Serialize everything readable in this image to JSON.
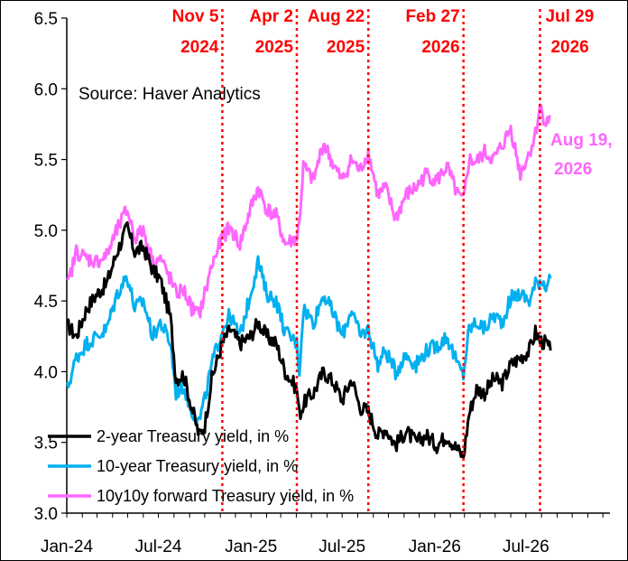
{
  "chart_data": {
    "type": "line",
    "ylim": [
      3.0,
      6.5
    ],
    "yticks": [
      "3.0",
      "3.5",
      "4.0",
      "4.5",
      "5.0",
      "5.5",
      "6.0",
      "6.5"
    ],
    "xtick_labels": [
      "Jan-24",
      "Jul-24",
      "Jan-25",
      "Jul-25",
      "Jan-26",
      "Jul-26"
    ],
    "source_note": "Source: Haver Analytics",
    "events": [
      {
        "date": "2024-11-05",
        "line1": "Nov 5",
        "line2": "2024"
      },
      {
        "date": "2025-04-02",
        "line1": "Apr 2",
        "line2": "2025"
      },
      {
        "date": "2025-08-22",
        "line1": "Aug 22",
        "line2": "2025"
      },
      {
        "date": "2026-02-27",
        "line1": "Feb 27",
        "line2": "2026"
      },
      {
        "date": "2026-07-29",
        "line1": "Jul 29",
        "line2": "2026"
      }
    ],
    "end_label": {
      "line1": "Aug 19,",
      "line2": "2026"
    },
    "series": [
      {
        "name": "2-year Treasury yield, in %",
        "color": "#000000",
        "points": [
          [
            "2024-01-02",
            4.33
          ],
          [
            "2024-01-20",
            4.25
          ],
          [
            "2024-02-10",
            4.45
          ],
          [
            "2024-03-01",
            4.55
          ],
          [
            "2024-03-20",
            4.62
          ],
          [
            "2024-04-10",
            4.85
          ],
          [
            "2024-04-30",
            5.02
          ],
          [
            "2024-05-15",
            4.85
          ],
          [
            "2024-06-01",
            4.88
          ],
          [
            "2024-06-20",
            4.72
          ],
          [
            "2024-07-05",
            4.65
          ],
          [
            "2024-07-25",
            4.38
          ],
          [
            "2024-08-05",
            3.95
          ],
          [
            "2024-08-20",
            3.98
          ],
          [
            "2024-09-05",
            3.75
          ],
          [
            "2024-09-20",
            3.55
          ],
          [
            "2024-10-01",
            3.62
          ],
          [
            "2024-10-15",
            3.95
          ],
          [
            "2024-11-05",
            4.2
          ],
          [
            "2024-11-20",
            4.3
          ],
          [
            "2024-12-10",
            4.2
          ],
          [
            "2024-12-31",
            4.25
          ],
          [
            "2025-01-15",
            4.35
          ],
          [
            "2025-02-01",
            4.25
          ],
          [
            "2025-02-20",
            4.2
          ],
          [
            "2025-03-10",
            4.0
          ],
          [
            "2025-04-02",
            3.88
          ],
          [
            "2025-04-07",
            3.7
          ],
          [
            "2025-04-20",
            3.8
          ],
          [
            "2025-05-05",
            3.85
          ],
          [
            "2025-05-25",
            4.0
          ],
          [
            "2025-06-15",
            3.92
          ],
          [
            "2025-07-01",
            3.8
          ],
          [
            "2025-07-20",
            3.95
          ],
          [
            "2025-08-05",
            3.75
          ],
          [
            "2025-08-22",
            3.72
          ],
          [
            "2025-09-10",
            3.55
          ],
          [
            "2025-09-25",
            3.6
          ],
          [
            "2025-10-15",
            3.48
          ],
          [
            "2025-11-05",
            3.58
          ],
          [
            "2025-11-25",
            3.5
          ],
          [
            "2025-12-15",
            3.55
          ],
          [
            "2026-01-05",
            3.48
          ],
          [
            "2026-01-25",
            3.55
          ],
          [
            "2026-02-15",
            3.45
          ],
          [
            "2026-02-27",
            3.4
          ],
          [
            "2026-03-10",
            3.7
          ],
          [
            "2026-03-25",
            3.88
          ],
          [
            "2026-04-10",
            3.85
          ],
          [
            "2026-04-28",
            3.95
          ],
          [
            "2026-05-15",
            3.92
          ],
          [
            "2026-06-01",
            4.05
          ],
          [
            "2026-06-20",
            4.1
          ],
          [
            "2026-07-08",
            4.15
          ],
          [
            "2026-07-20",
            4.28
          ],
          [
            "2026-07-29",
            4.22
          ],
          [
            "2026-08-10",
            4.2
          ],
          [
            "2026-08-19",
            4.15
          ]
        ]
      },
      {
        "name": "10-year Treasury yield, in %",
        "color": "#00b0f0",
        "points": [
          [
            "2024-01-02",
            3.88
          ],
          [
            "2024-01-20",
            4.1
          ],
          [
            "2024-02-10",
            4.2
          ],
          [
            "2024-03-01",
            4.25
          ],
          [
            "2024-03-20",
            4.3
          ],
          [
            "2024-04-10",
            4.55
          ],
          [
            "2024-04-30",
            4.68
          ],
          [
            "2024-05-15",
            4.45
          ],
          [
            "2024-06-01",
            4.5
          ],
          [
            "2024-06-20",
            4.25
          ],
          [
            "2024-07-05",
            4.35
          ],
          [
            "2024-07-25",
            4.2
          ],
          [
            "2024-08-05",
            3.85
          ],
          [
            "2024-08-20",
            3.9
          ],
          [
            "2024-09-05",
            3.72
          ],
          [
            "2024-09-20",
            3.65
          ],
          [
            "2024-10-01",
            3.8
          ],
          [
            "2024-10-15",
            4.05
          ],
          [
            "2024-11-05",
            4.3
          ],
          [
            "2024-11-20",
            4.4
          ],
          [
            "2024-12-10",
            4.25
          ],
          [
            "2024-12-31",
            4.55
          ],
          [
            "2025-01-15",
            4.78
          ],
          [
            "2025-02-01",
            4.55
          ],
          [
            "2025-02-20",
            4.5
          ],
          [
            "2025-03-10",
            4.28
          ],
          [
            "2025-04-02",
            4.2
          ],
          [
            "2025-04-07",
            4.0
          ],
          [
            "2025-04-15",
            4.45
          ],
          [
            "2025-05-05",
            4.35
          ],
          [
            "2025-05-25",
            4.55
          ],
          [
            "2025-06-15",
            4.4
          ],
          [
            "2025-07-01",
            4.25
          ],
          [
            "2025-07-20",
            4.45
          ],
          [
            "2025-08-05",
            4.25
          ],
          [
            "2025-08-22",
            4.3
          ],
          [
            "2025-09-10",
            4.05
          ],
          [
            "2025-09-25",
            4.15
          ],
          [
            "2025-10-15",
            4.0
          ],
          [
            "2025-11-05",
            4.12
          ],
          [
            "2025-11-25",
            4.05
          ],
          [
            "2025-12-15",
            4.15
          ],
          [
            "2026-01-05",
            4.18
          ],
          [
            "2026-01-25",
            4.25
          ],
          [
            "2026-02-15",
            4.05
          ],
          [
            "2026-02-27",
            3.98
          ],
          [
            "2026-03-10",
            4.3
          ],
          [
            "2026-03-25",
            4.35
          ],
          [
            "2026-04-10",
            4.3
          ],
          [
            "2026-04-28",
            4.4
          ],
          [
            "2026-05-15",
            4.35
          ],
          [
            "2026-06-01",
            4.52
          ],
          [
            "2026-06-20",
            4.55
          ],
          [
            "2026-07-08",
            4.5
          ],
          [
            "2026-07-20",
            4.62
          ],
          [
            "2026-07-29",
            4.65
          ],
          [
            "2026-08-10",
            4.62
          ],
          [
            "2026-08-19",
            4.66
          ]
        ]
      },
      {
        "name": "10y10y forward Treasury yield, in %",
        "color": "#ff66ff",
        "points": [
          [
            "2024-01-02",
            4.6
          ],
          [
            "2024-01-20",
            4.85
          ],
          [
            "2024-02-10",
            4.8
          ],
          [
            "2024-03-01",
            4.78
          ],
          [
            "2024-03-20",
            4.82
          ],
          [
            "2024-04-10",
            5.0
          ],
          [
            "2024-04-30",
            5.15
          ],
          [
            "2024-05-15",
            4.95
          ],
          [
            "2024-06-01",
            5.0
          ],
          [
            "2024-06-20",
            4.78
          ],
          [
            "2024-07-05",
            4.8
          ],
          [
            "2024-07-25",
            4.65
          ],
          [
            "2024-08-05",
            4.55
          ],
          [
            "2024-08-20",
            4.58
          ],
          [
            "2024-09-05",
            4.45
          ],
          [
            "2024-09-20",
            4.4
          ],
          [
            "2024-10-01",
            4.55
          ],
          [
            "2024-10-15",
            4.75
          ],
          [
            "2024-11-05",
            4.95
          ],
          [
            "2024-11-20",
            5.02
          ],
          [
            "2024-12-10",
            4.9
          ],
          [
            "2024-12-31",
            5.15
          ],
          [
            "2025-01-15",
            5.3
          ],
          [
            "2025-02-01",
            5.15
          ],
          [
            "2025-02-20",
            5.1
          ],
          [
            "2025-03-10",
            4.9
          ],
          [
            "2025-04-02",
            4.95
          ],
          [
            "2025-04-07",
            5.05
          ],
          [
            "2025-04-15",
            5.45
          ],
          [
            "2025-05-05",
            5.35
          ],
          [
            "2025-05-25",
            5.62
          ],
          [
            "2025-06-15",
            5.45
          ],
          [
            "2025-07-01",
            5.35
          ],
          [
            "2025-07-20",
            5.5
          ],
          [
            "2025-08-05",
            5.42
          ],
          [
            "2025-08-22",
            5.55
          ],
          [
            "2025-09-10",
            5.25
          ],
          [
            "2025-09-25",
            5.3
          ],
          [
            "2025-10-15",
            5.08
          ],
          [
            "2025-11-05",
            5.25
          ],
          [
            "2025-11-25",
            5.3
          ],
          [
            "2025-12-15",
            5.4
          ],
          [
            "2026-01-05",
            5.35
          ],
          [
            "2026-01-25",
            5.45
          ],
          [
            "2026-02-15",
            5.25
          ],
          [
            "2026-02-27",
            5.2
          ],
          [
            "2026-03-10",
            5.5
          ],
          [
            "2026-03-25",
            5.48
          ],
          [
            "2026-04-10",
            5.55
          ],
          [
            "2026-04-28",
            5.5
          ],
          [
            "2026-05-15",
            5.6
          ],
          [
            "2026-06-01",
            5.72
          ],
          [
            "2026-06-20",
            5.4
          ],
          [
            "2026-07-08",
            5.55
          ],
          [
            "2026-07-20",
            5.68
          ],
          [
            "2026-07-29",
            5.88
          ],
          [
            "2026-08-10",
            5.75
          ],
          [
            "2026-08-19",
            5.8
          ]
        ]
      }
    ]
  }
}
